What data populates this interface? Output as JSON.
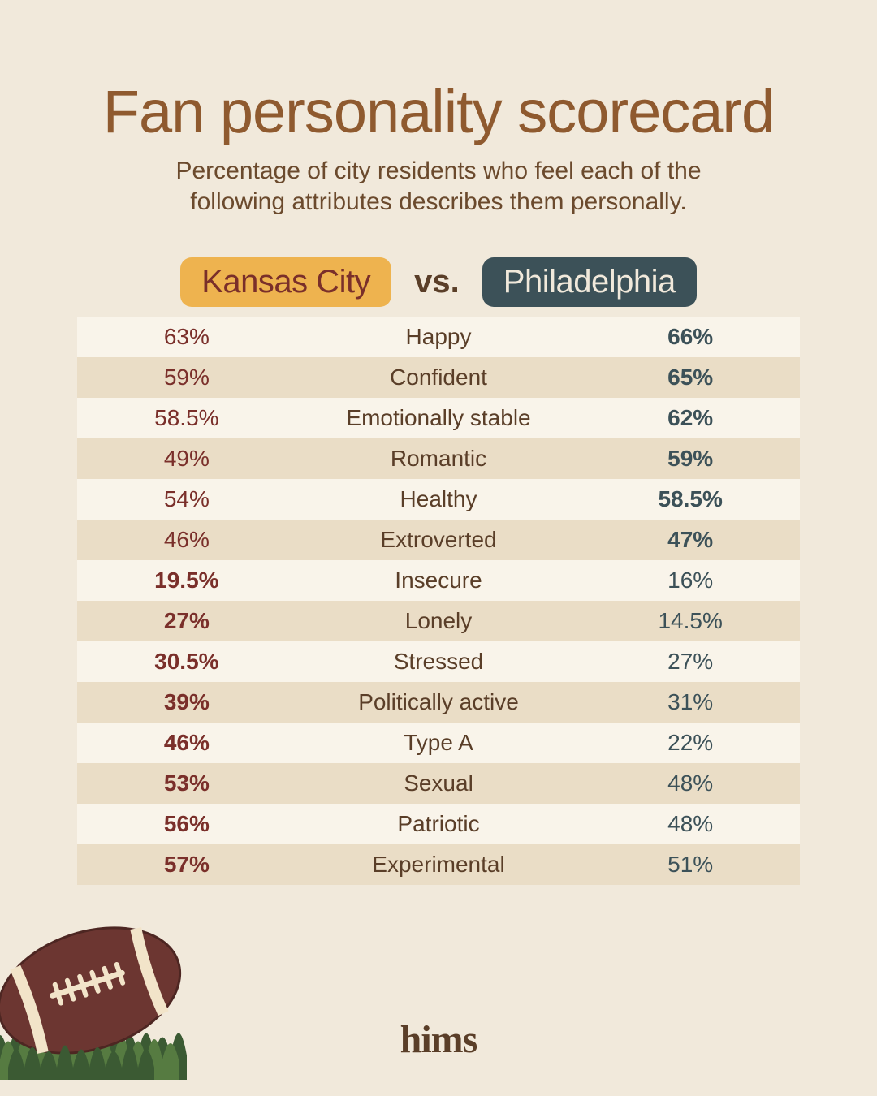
{
  "colors": {
    "background": "#f1e9db",
    "title": "#8f5a2f",
    "subtitle": "#6b4a2d",
    "kc_pill_bg": "#eeb34f",
    "kc_pill_text": "#7a2f2a",
    "phl_pill_bg": "#3c5158",
    "phl_pill_text": "#f1e9db",
    "vs_text": "#5a3e28",
    "kc_value": "#7a2f2a",
    "phl_value": "#3c5158",
    "attr_text": "#5a3e28",
    "row_even": "#f9f4ea",
    "row_odd": "#eaddc6",
    "logo": "#5a3e28",
    "football_body": "#6c3631",
    "football_stripe": "#f2e4c9",
    "grass_dark": "#3b5a33",
    "grass_light": "#567b41"
  },
  "title": "Fan personality scorecard",
  "subtitle": "Percentage of city residents who feel each of the following attributes describes them personally.",
  "header": {
    "city1": "Kansas City",
    "vs": "vs.",
    "city2": "Philadelphia"
  },
  "rows": [
    {
      "attr": "Happy",
      "kc": "63%",
      "phl": "66%",
      "kc_bold": false,
      "phl_bold": true
    },
    {
      "attr": "Confident",
      "kc": "59%",
      "phl": "65%",
      "kc_bold": false,
      "phl_bold": true
    },
    {
      "attr": "Emotionally stable",
      "kc": "58.5%",
      "phl": "62%",
      "kc_bold": false,
      "phl_bold": true
    },
    {
      "attr": "Romantic",
      "kc": "49%",
      "phl": "59%",
      "kc_bold": false,
      "phl_bold": true
    },
    {
      "attr": "Healthy",
      "kc": "54%",
      "phl": "58.5%",
      "kc_bold": false,
      "phl_bold": true
    },
    {
      "attr": "Extroverted",
      "kc": "46%",
      "phl": "47%",
      "kc_bold": false,
      "phl_bold": true
    },
    {
      "attr": "Insecure",
      "kc": "19.5%",
      "phl": "16%",
      "kc_bold": true,
      "phl_bold": false
    },
    {
      "attr": "Lonely",
      "kc": "27%",
      "phl": "14.5%",
      "kc_bold": true,
      "phl_bold": false
    },
    {
      "attr": "Stressed",
      "kc": "30.5%",
      "phl": "27%",
      "kc_bold": true,
      "phl_bold": false
    },
    {
      "attr": "Politically active",
      "kc": "39%",
      "phl": "31%",
      "kc_bold": true,
      "phl_bold": false
    },
    {
      "attr": "Type A",
      "kc": "46%",
      "phl": "22%",
      "kc_bold": true,
      "phl_bold": false
    },
    {
      "attr": "Sexual",
      "kc": "53%",
      "phl": "48%",
      "kc_bold": true,
      "phl_bold": false
    },
    {
      "attr": "Patriotic",
      "kc": "56%",
      "phl": "48%",
      "kc_bold": true,
      "phl_bold": false
    },
    {
      "attr": "Experimental",
      "kc": "57%",
      "phl": "51%",
      "kc_bold": true,
      "phl_bold": false
    }
  ],
  "logo": "hims"
}
